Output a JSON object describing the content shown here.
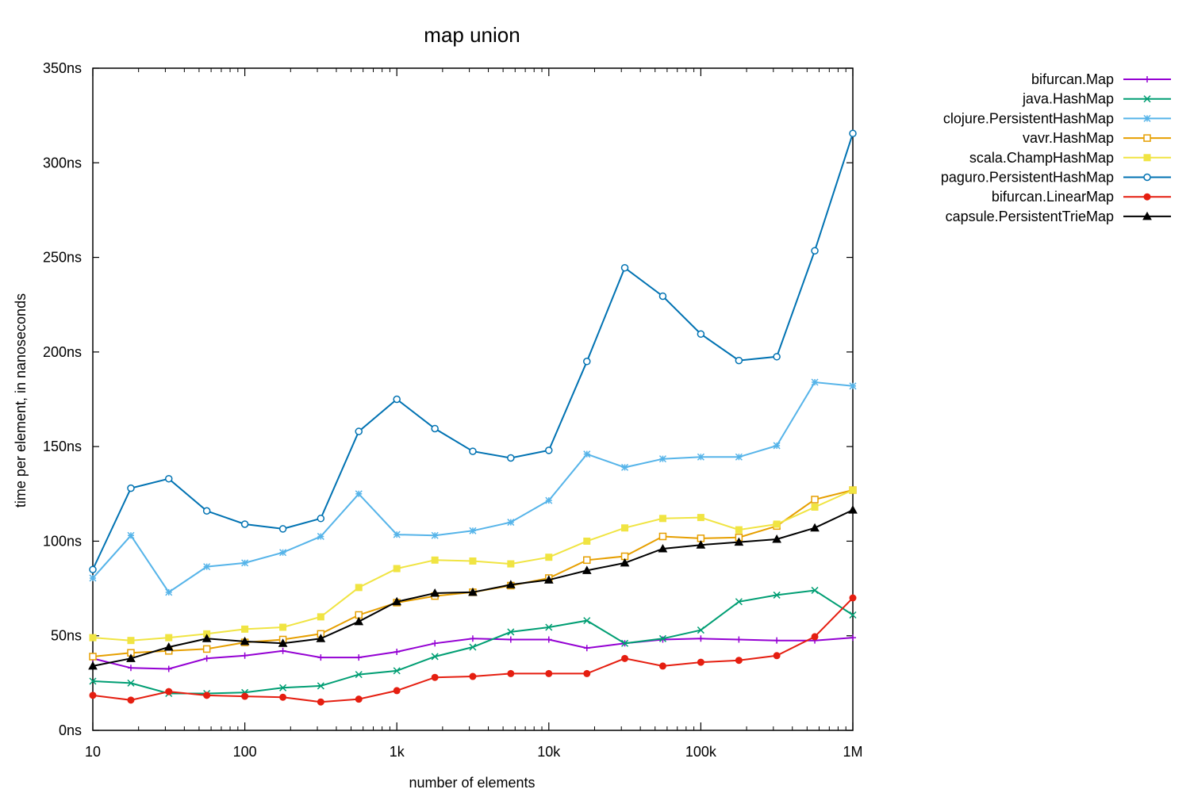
{
  "chart_data": {
    "type": "line",
    "title": "map union",
    "xlabel": "number of elements",
    "ylabel": "time per element, in nanoseconds",
    "x_scale": "log",
    "xlim": [
      10,
      1000000
    ],
    "ylim": [
      0,
      350
    ],
    "x_ticks": [
      {
        "value": 10,
        "label": "10"
      },
      {
        "value": 100,
        "label": "100"
      },
      {
        "value": 1000,
        "label": "1k"
      },
      {
        "value": 10000,
        "label": "10k"
      },
      {
        "value": 100000,
        "label": "100k"
      },
      {
        "value": 1000000,
        "label": "1M"
      }
    ],
    "y_ticks": [
      {
        "value": 0,
        "label": "0ns"
      },
      {
        "value": 50,
        "label": "50ns"
      },
      {
        "value": 100,
        "label": "100ns"
      },
      {
        "value": 150,
        "label": "150ns"
      },
      {
        "value": 200,
        "label": "200ns"
      },
      {
        "value": 250,
        "label": "250ns"
      },
      {
        "value": 300,
        "label": "300ns"
      },
      {
        "value": 350,
        "label": "350ns"
      }
    ],
    "grid": false,
    "legend_position": "top-right outside",
    "x": [
      10,
      17.8,
      31.6,
      56.2,
      100,
      178,
      316,
      562,
      1000,
      1780,
      3160,
      5620,
      10000,
      17800,
      31600,
      56200,
      100000,
      178000,
      316000,
      562000,
      1000000
    ],
    "series": [
      {
        "name": "bifurcan.Map",
        "color": "#9400d3",
        "marker": "plus",
        "values": [
          38,
          33,
          32.5,
          38,
          39.5,
          42,
          38.5,
          38.5,
          41.5,
          46,
          48.5,
          48,
          48,
          43.5,
          46,
          48,
          48.5,
          48,
          47.5,
          47.5,
          49
        ]
      },
      {
        "name": "java.HashMap",
        "color": "#009e73",
        "marker": "cross",
        "values": [
          26,
          25,
          19.5,
          19.5,
          20,
          22.5,
          23.5,
          29.5,
          31.5,
          39,
          44,
          52,
          54.5,
          58,
          46,
          48.5,
          53,
          68,
          71.5,
          74,
          61
        ]
      },
      {
        "name": "clojure.PersistentHashMap",
        "color": "#56b4e9",
        "marker": "star",
        "values": [
          80.5,
          103,
          73,
          86.5,
          88.5,
          94,
          102.5,
          125,
          103.5,
          103,
          105.5,
          110,
          121.5,
          146,
          139,
          143.5,
          144.5,
          144.5,
          150.5,
          184,
          182
        ]
      },
      {
        "name": "vavr.HashMap",
        "color": "#e69f00",
        "marker": "square-open",
        "values": [
          39,
          41,
          42,
          43,
          46.5,
          48,
          51,
          61,
          67.5,
          71,
          73,
          76.5,
          80.5,
          90,
          92,
          102.5,
          101.5,
          102,
          108,
          122,
          127
        ]
      },
      {
        "name": "scala.ChampHashMap",
        "color": "#f0e442",
        "marker": "square-filled",
        "values": [
          49,
          47.5,
          49,
          51,
          53.5,
          54.5,
          60,
          75.5,
          85.5,
          90,
          89.5,
          88,
          91.5,
          100,
          107,
          112,
          112.5,
          106,
          109,
          118,
          127
        ]
      },
      {
        "name": "paguro.PersistentHashMap",
        "color": "#0072b2",
        "marker": "circle-open",
        "values": [
          85,
          128,
          133,
          116,
          109,
          106.5,
          112,
          158,
          175,
          159.5,
          147.5,
          144,
          148,
          195,
          244.5,
          229.5,
          209.5,
          195.5,
          197.5,
          253.5,
          315.5
        ]
      },
      {
        "name": "bifurcan.LinearMap",
        "color": "#e51e10",
        "marker": "circle-filled",
        "values": [
          18.5,
          16,
          20.5,
          18.5,
          18,
          17.5,
          15,
          16.5,
          21,
          28,
          28.5,
          30,
          30,
          30,
          38,
          34,
          36,
          37,
          39.5,
          49.5,
          70
        ]
      },
      {
        "name": "capsule.PersistentTrieMap",
        "color": "#000000",
        "marker": "triangle",
        "values": [
          34,
          38,
          44,
          48.5,
          47,
          46,
          48.5,
          57.5,
          68,
          72.5,
          73,
          77,
          79.5,
          84.5,
          88.5,
          96,
          98,
          99.5,
          101,
          107,
          116.5
        ]
      }
    ]
  }
}
